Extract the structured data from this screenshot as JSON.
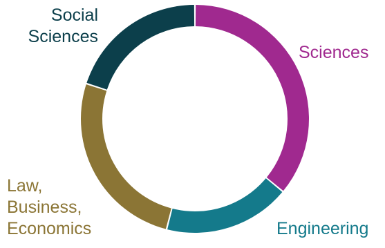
{
  "chart_data": {
    "type": "pie",
    "title": "",
    "categories": [
      "Sciences",
      "Engineering",
      "Law, Business, Economics",
      "Social Sciences"
    ],
    "values": [
      36,
      18,
      26,
      20
    ],
    "label_lines": [
      [
        "Sciences"
      ],
      [
        "Engineering"
      ],
      [
        "Law,",
        "Business,",
        "Economics"
      ],
      [
        "Social",
        "Sciences"
      ]
    ],
    "colors": [
      "#a0298f",
      "#147a8b",
      "#8b7535",
      "#0c3f4b"
    ],
    "legend": "none"
  }
}
